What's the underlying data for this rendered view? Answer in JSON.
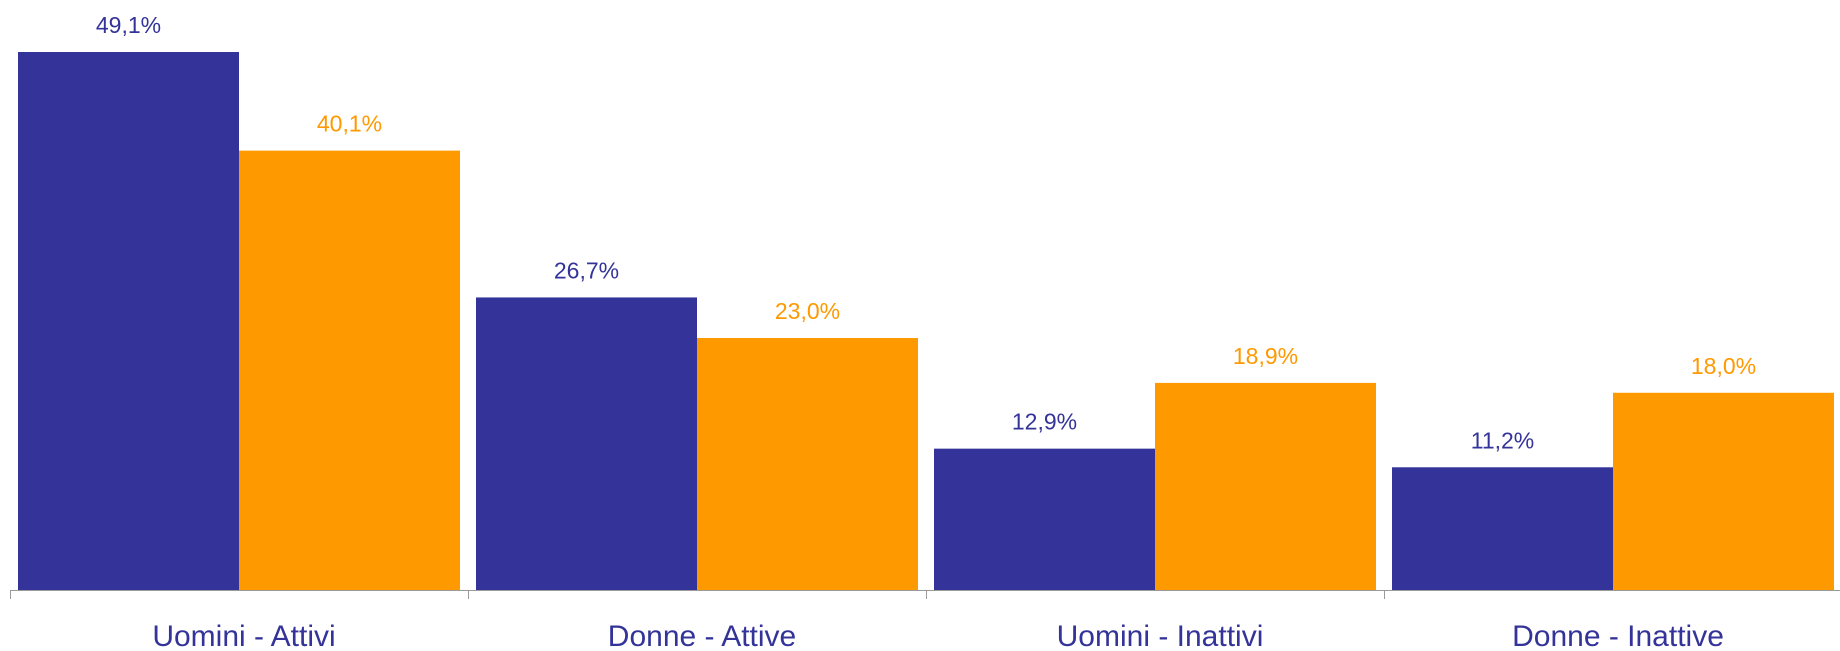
{
  "chart_data": {
    "type": "bar",
    "categories": [
      "Uomini - Attivi",
      "Donne - Attive",
      "Uomini - Inattivi",
      "Donne - Inattive"
    ],
    "series": [
      {
        "color": "#333399",
        "values": [
          49.1,
          26.7,
          12.9,
          11.2
        ],
        "labels": [
          "49,1%",
          "26,7%",
          "12,9%",
          "11,2%"
        ]
      },
      {
        "color": "#ff9900",
        "values": [
          40.1,
          23.0,
          18.9,
          18.0
        ],
        "labels": [
          "40,1%",
          "23,0%",
          "18,9%",
          "18,0%"
        ]
      }
    ],
    "ylim": [
      0,
      55
    ],
    "grid": false,
    "legend": "none",
    "title": "",
    "xlabel": "",
    "ylabel": ""
  }
}
